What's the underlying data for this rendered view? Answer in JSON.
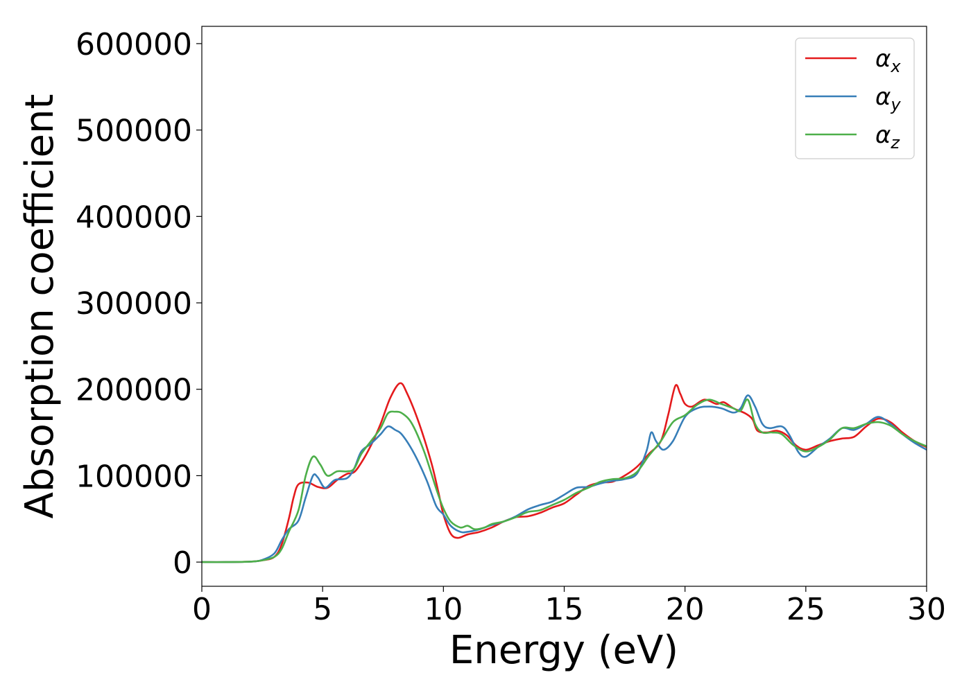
{
  "chart_data": {
    "type": "line",
    "title": "",
    "xlabel": "Energy (eV)",
    "ylabel": "Absorption coefficient",
    "xlim": [
      0,
      30
    ],
    "ylim": [
      -28000,
      620000
    ],
    "x_ticks": [
      0,
      5,
      10,
      15,
      20,
      25,
      30
    ],
    "y_ticks": [
      0,
      100000,
      200000,
      300000,
      400000,
      500000,
      600000
    ],
    "grid": false,
    "legend_position": "top-right",
    "series": [
      {
        "name": "αx",
        "legend_base": "α",
        "legend_sub": "x",
        "color": "#e41a1c",
        "points": [
          [
            0,
            0
          ],
          [
            1,
            0
          ],
          [
            2,
            500
          ],
          [
            2.5,
            2000
          ],
          [
            3,
            6000
          ],
          [
            3.3,
            20000
          ],
          [
            3.6,
            50000
          ],
          [
            3.8,
            75000
          ],
          [
            4.0,
            90000
          ],
          [
            4.4,
            92000
          ],
          [
            4.8,
            87000
          ],
          [
            5.2,
            86000
          ],
          [
            5.6,
            95000
          ],
          [
            6.0,
            102000
          ],
          [
            6.3,
            104000
          ],
          [
            6.6,
            115000
          ],
          [
            7.0,
            135000
          ],
          [
            7.4,
            160000
          ],
          [
            7.8,
            190000
          ],
          [
            8.2,
            207000
          ],
          [
            8.5,
            195000
          ],
          [
            9.0,
            160000
          ],
          [
            9.5,
            115000
          ],
          [
            9.8,
            80000
          ],
          [
            10.0,
            55000
          ],
          [
            10.3,
            33000
          ],
          [
            10.6,
            28000
          ],
          [
            11.0,
            32000
          ],
          [
            11.5,
            35000
          ],
          [
            12,
            40000
          ],
          [
            12.5,
            47000
          ],
          [
            13,
            52000
          ],
          [
            13.5,
            53000
          ],
          [
            14,
            57000
          ],
          [
            14.5,
            63000
          ],
          [
            15,
            68000
          ],
          [
            15.5,
            78000
          ],
          [
            16,
            88000
          ],
          [
            16.5,
            92000
          ],
          [
            17,
            93000
          ],
          [
            17.5,
            100000
          ],
          [
            18,
            110000
          ],
          [
            18.5,
            125000
          ],
          [
            19.0,
            140000
          ],
          [
            19.3,
            170000
          ],
          [
            19.6,
            204000
          ],
          [
            19.8,
            195000
          ],
          [
            20.0,
            183000
          ],
          [
            20.3,
            180000
          ],
          [
            20.8,
            188000
          ],
          [
            21.3,
            183000
          ],
          [
            21.6,
            185000
          ],
          [
            22,
            178000
          ],
          [
            22.5,
            172000
          ],
          [
            22.8,
            165000
          ],
          [
            23.0,
            152000
          ],
          [
            23.4,
            150000
          ],
          [
            23.8,
            152000
          ],
          [
            24.2,
            147000
          ],
          [
            24.6,
            135000
          ],
          [
            25.0,
            130000
          ],
          [
            25.5,
            135000
          ],
          [
            26,
            140000
          ],
          [
            26.5,
            143000
          ],
          [
            27,
            145000
          ],
          [
            27.5,
            157000
          ],
          [
            28,
            166000
          ],
          [
            28.5,
            162000
          ],
          [
            29,
            150000
          ],
          [
            29.5,
            140000
          ],
          [
            30,
            133000
          ]
        ]
      },
      {
        "name": "αy",
        "legend_base": "α",
        "legend_sub": "y",
        "color": "#377eb8",
        "points": [
          [
            0,
            0
          ],
          [
            1,
            0
          ],
          [
            2,
            500
          ],
          [
            2.5,
            2500
          ],
          [
            3,
            10000
          ],
          [
            3.3,
            25000
          ],
          [
            3.6,
            38000
          ],
          [
            4.0,
            48000
          ],
          [
            4.3,
            75000
          ],
          [
            4.6,
            100000
          ],
          [
            4.8,
            98000
          ],
          [
            5.1,
            86000
          ],
          [
            5.5,
            95000
          ],
          [
            6.0,
            97000
          ],
          [
            6.3,
            108000
          ],
          [
            6.6,
            128000
          ],
          [
            7.0,
            137000
          ],
          [
            7.4,
            148000
          ],
          [
            7.7,
            157000
          ],
          [
            8.0,
            153000
          ],
          [
            8.3,
            147000
          ],
          [
            8.8,
            125000
          ],
          [
            9.3,
            95000
          ],
          [
            9.7,
            65000
          ],
          [
            10.0,
            55000
          ],
          [
            10.3,
            42000
          ],
          [
            10.7,
            35000
          ],
          [
            11.0,
            35000
          ],
          [
            11.5,
            38000
          ],
          [
            12,
            43000
          ],
          [
            12.5,
            47000
          ],
          [
            13,
            53000
          ],
          [
            13.5,
            61000
          ],
          [
            14,
            66000
          ],
          [
            14.5,
            70000
          ],
          [
            15,
            78000
          ],
          [
            15.5,
            86000
          ],
          [
            16,
            87000
          ],
          [
            16.5,
            91000
          ],
          [
            17,
            94000
          ],
          [
            17.5,
            96000
          ],
          [
            18,
            102000
          ],
          [
            18.4,
            128000
          ],
          [
            18.6,
            150000
          ],
          [
            18.8,
            140000
          ],
          [
            19.1,
            130000
          ],
          [
            19.5,
            140000
          ],
          [
            20.0,
            168000
          ],
          [
            20.5,
            178000
          ],
          [
            21,
            180000
          ],
          [
            21.5,
            178000
          ],
          [
            22,
            173000
          ],
          [
            22.3,
            178000
          ],
          [
            22.6,
            193000
          ],
          [
            22.9,
            180000
          ],
          [
            23.2,
            160000
          ],
          [
            23.5,
            155000
          ],
          [
            24.0,
            157000
          ],
          [
            24.3,
            148000
          ],
          [
            24.7,
            127000
          ],
          [
            25.0,
            122000
          ],
          [
            25.5,
            133000
          ],
          [
            26,
            143000
          ],
          [
            26.5,
            155000
          ],
          [
            27,
            153000
          ],
          [
            27.5,
            160000
          ],
          [
            28,
            168000
          ],
          [
            28.5,
            160000
          ],
          [
            29,
            148000
          ],
          [
            29.5,
            138000
          ],
          [
            30,
            130000
          ]
        ]
      },
      {
        "name": "αz",
        "legend_base": "α",
        "legend_sub": "z",
        "color": "#4daf4a",
        "points": [
          [
            0,
            0
          ],
          [
            1,
            0
          ],
          [
            2,
            500
          ],
          [
            2.5,
            2000
          ],
          [
            3,
            6000
          ],
          [
            3.3,
            15000
          ],
          [
            3.6,
            35000
          ],
          [
            4.0,
            60000
          ],
          [
            4.3,
            100000
          ],
          [
            4.6,
            122000
          ],
          [
            4.9,
            113000
          ],
          [
            5.2,
            100000
          ],
          [
            5.6,
            105000
          ],
          [
            6.0,
            105000
          ],
          [
            6.3,
            108000
          ],
          [
            6.6,
            125000
          ],
          [
            7.0,
            140000
          ],
          [
            7.4,
            155000
          ],
          [
            7.7,
            172000
          ],
          [
            8.0,
            174000
          ],
          [
            8.3,
            172000
          ],
          [
            8.7,
            160000
          ],
          [
            9.2,
            128000
          ],
          [
            9.7,
            85000
          ],
          [
            10.0,
            62000
          ],
          [
            10.3,
            47000
          ],
          [
            10.7,
            40000
          ],
          [
            11.0,
            42000
          ],
          [
            11.3,
            38000
          ],
          [
            11.7,
            40000
          ],
          [
            12,
            44000
          ],
          [
            12.5,
            47000
          ],
          [
            13,
            52000
          ],
          [
            13.5,
            58000
          ],
          [
            14,
            60000
          ],
          [
            14.5,
            66000
          ],
          [
            15,
            72000
          ],
          [
            15.5,
            80000
          ],
          [
            16,
            86000
          ],
          [
            16.5,
            93000
          ],
          [
            17,
            96000
          ],
          [
            17.5,
            97000
          ],
          [
            18,
            104000
          ],
          [
            18.5,
            123000
          ],
          [
            19.0,
            140000
          ],
          [
            19.5,
            162000
          ],
          [
            20.0,
            170000
          ],
          [
            20.5,
            182000
          ],
          [
            21,
            188000
          ],
          [
            21.5,
            183000
          ],
          [
            22,
            178000
          ],
          [
            22.3,
            175000
          ],
          [
            22.6,
            188000
          ],
          [
            22.9,
            160000
          ],
          [
            23.2,
            150000
          ],
          [
            23.6,
            150000
          ],
          [
            24.0,
            148000
          ],
          [
            24.5,
            135000
          ],
          [
            25.0,
            128000
          ],
          [
            25.5,
            133000
          ],
          [
            26,
            142000
          ],
          [
            26.5,
            155000
          ],
          [
            27,
            155000
          ],
          [
            27.5,
            160000
          ],
          [
            28,
            162000
          ],
          [
            28.5,
            158000
          ],
          [
            29,
            148000
          ],
          [
            29.5,
            140000
          ],
          [
            30,
            134000
          ]
        ]
      }
    ]
  }
}
